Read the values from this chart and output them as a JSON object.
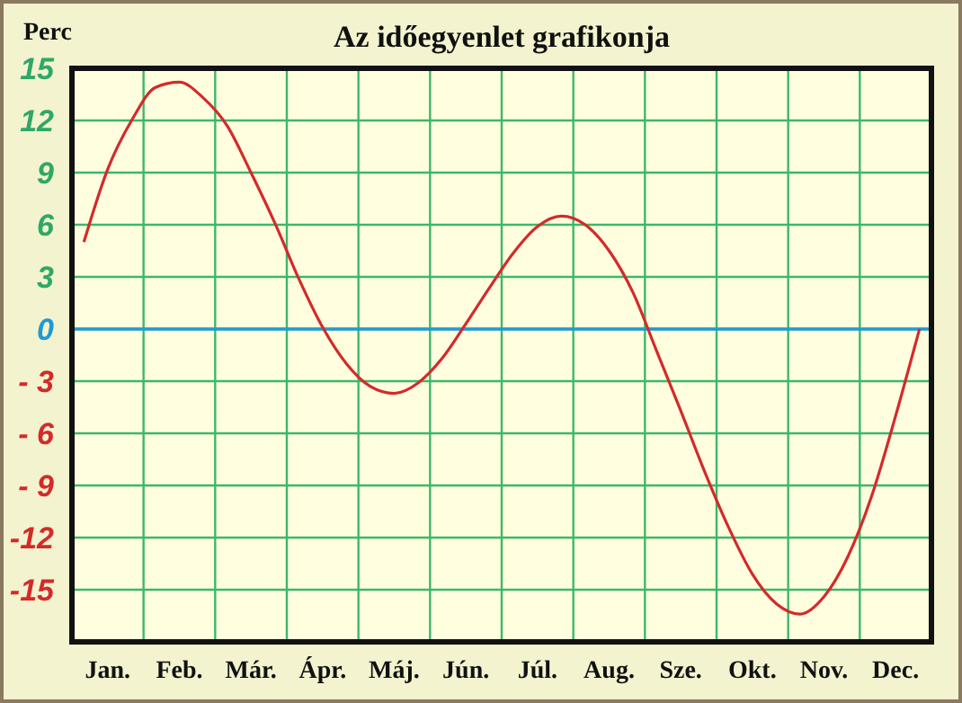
{
  "chart_data": {
    "type": "line",
    "title": "Az időegyenlet grafikonja",
    "ylabel": "Perc",
    "categories": [
      null,
      "Jan.",
      null,
      null,
      "Feb.",
      null,
      null,
      "Már.",
      null,
      null,
      "Ápr.",
      null,
      null,
      "Máj.",
      null,
      null,
      "Jún.",
      null,
      null,
      "Júl.",
      null,
      null,
      "Aug.",
      null,
      null,
      "Sze.",
      null,
      null,
      "Okt.",
      null,
      null,
      "Nov.",
      null,
      null,
      "Dec.",
      null
    ],
    "series": [
      {
        "color": "#d42a2a",
        "values": [
          5.0,
          9.2,
          12.0,
          13.9,
          14.2,
          13.3,
          11.7,
          9.0,
          6.1,
          2.9,
          0.1,
          -2.0,
          -3.3,
          -3.7,
          -3.1,
          -1.7,
          0.3,
          2.4,
          4.4,
          5.9,
          6.5,
          6.0,
          4.5,
          2.1,
          -1.3,
          -4.7,
          -8.2,
          -11.4,
          -14.1,
          -15.8,
          -16.4,
          -15.4,
          -13.1,
          -9.6,
          -5.0,
          0.0
        ]
      }
    ],
    "ylim": [
      -18,
      15
    ],
    "yticks": [
      15,
      12,
      9,
      6,
      3,
      0,
      {
        "value": -3,
        "label": "- 3"
      },
      {
        "value": -6,
        "label": "- 6"
      },
      {
        "value": -9,
        "label": "- 9"
      },
      -12,
      -15
    ],
    "ref_lines": [
      {
        "axis": "y",
        "value": 0,
        "color": "#1e9ad6"
      }
    ],
    "grid": true,
    "marker": "none",
    "line_style": "solid"
  }
}
